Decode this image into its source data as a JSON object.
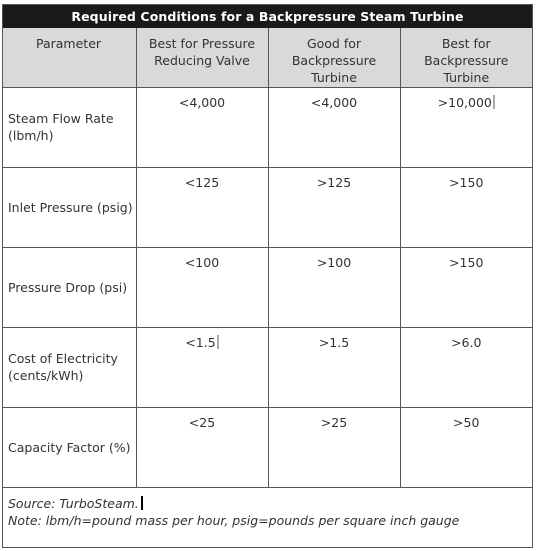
{
  "title": "Required Conditions for a Backpressure Steam Turbine",
  "columns": {
    "parameter": "Parameter",
    "col1": "Best for Pressure Reducing Valve",
    "col2": "Good for Backpressure Turbine",
    "col3": "Best for Backpressure Turbine"
  },
  "rows": [
    {
      "label": "Steam Flow Rate (lbm/h)",
      "v1": "<4,000",
      "v2": "<4,000",
      "v3": ">10,000"
    },
    {
      "label": "Inlet Pressure (psig)",
      "v1": "<125",
      "v2": ">125",
      "v3": ">150"
    },
    {
      "label": "Pressure Drop (psi)",
      "v1": "<100",
      "v2": ">100",
      "v3": ">150"
    },
    {
      "label": "Cost of Electricity (cents/kWh)",
      "v1": "<1.5",
      "v2": ">1.5",
      "v3": ">6.0"
    },
    {
      "label": "Capacity Factor (%)",
      "v1": "<25",
      "v2": ">25",
      "v3": ">50"
    }
  ],
  "footer": {
    "source": "Source: TurboSteam.",
    "note": "Note: lbm/h=pound mass per hour, psig=pounds per square inch gauge"
  }
}
